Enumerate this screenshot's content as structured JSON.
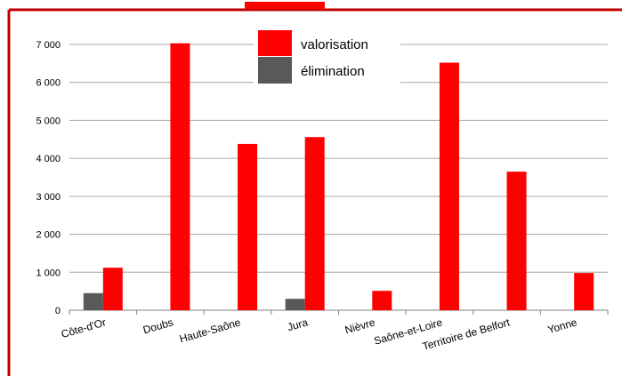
{
  "chart_data": {
    "type": "bar",
    "categories": [
      "Côte-d'Or",
      "Doubs",
      "Haute-Saône",
      "Jura",
      "Nièvre",
      "Saône-et-Loire",
      "Territoire de Belfort",
      "Yonne"
    ],
    "series": [
      {
        "name": "élimination",
        "color": "#595959",
        "values": [
          450,
          0,
          0,
          300,
          0,
          0,
          0,
          0
        ]
      },
      {
        "name": "valorisation",
        "color": "#ff0000",
        "values": [
          1120,
          7030,
          4380,
          4560,
          510,
          6520,
          3650,
          980
        ]
      }
    ],
    "y_ticks": [
      "0",
      "1 000",
      "2 000",
      "3 000",
      "4 000",
      "5 000",
      "6 000",
      "7 000"
    ],
    "ylim": [
      0,
      7000
    ],
    "grid": true,
    "legend_position": "top-center",
    "colors": {
      "frame": "#c00000",
      "grid": "#a6a6a6",
      "axis": "#7f7f7f"
    }
  }
}
